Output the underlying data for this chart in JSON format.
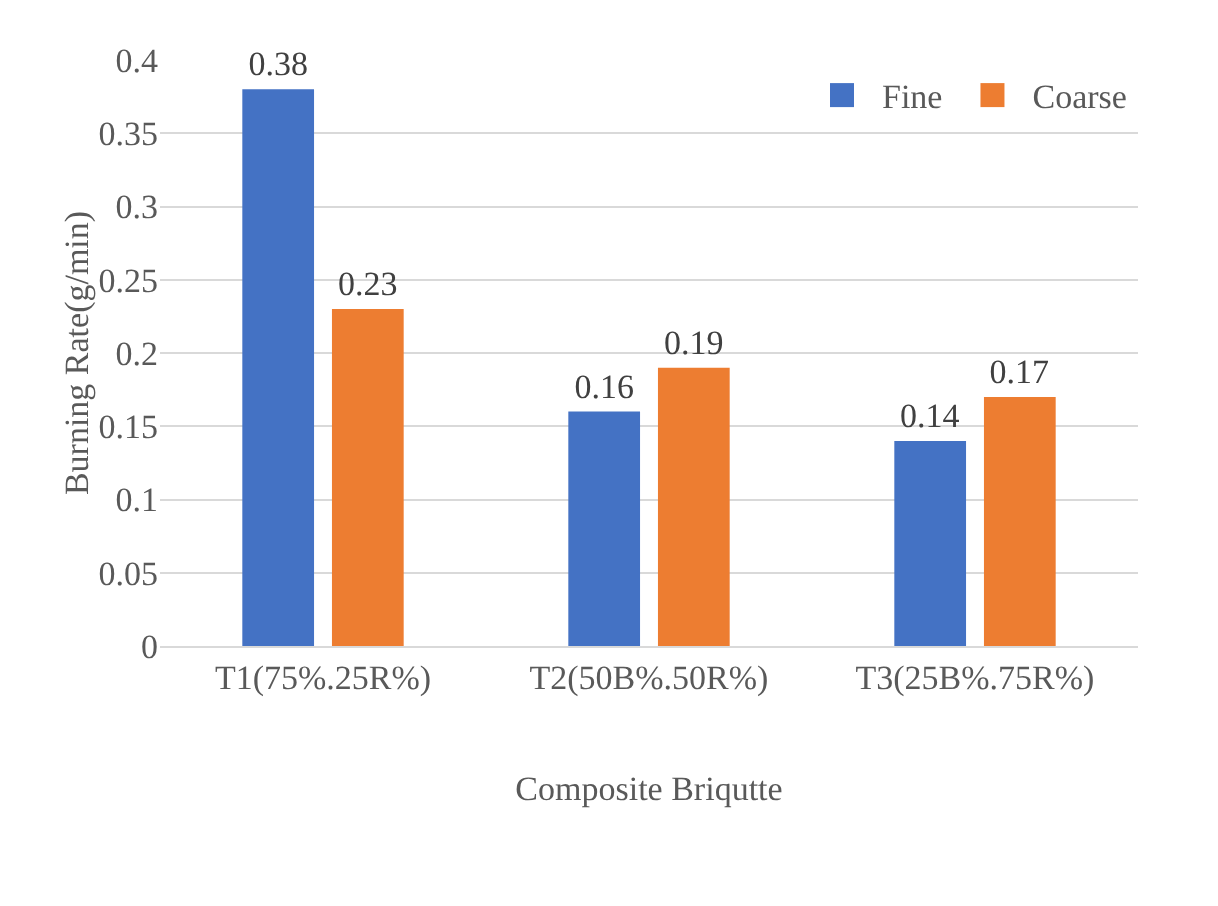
{
  "chart_data": {
    "type": "bar",
    "xlabel": "Composite Briqutte",
    "ylabel": "Burning Rate(g/min)",
    "categories": [
      "T1(75%.25R%)",
      "T2(50B%.50R%)",
      "T3(25B%.75R%)"
    ],
    "series": [
      {
        "name": "Fine",
        "color": "#4472c4",
        "values": [
          0.38,
          0.16,
          0.14
        ]
      },
      {
        "name": "Coarse",
        "color": "#ed7d31",
        "values": [
          0.23,
          0.19,
          0.17
        ]
      }
    ],
    "ylim": [
      0,
      0.4
    ],
    "yticks": [
      0,
      0.05,
      0.1,
      0.15,
      0.2,
      0.25,
      0.3,
      0.35,
      0.4
    ],
    "grid": "y",
    "legend": "top right",
    "data_labels": true
  }
}
